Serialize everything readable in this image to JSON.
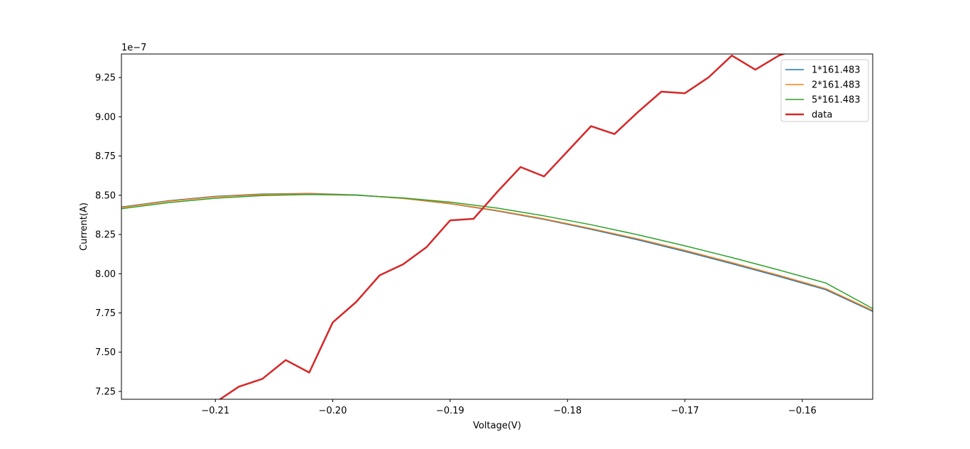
{
  "chart_data": {
    "type": "line",
    "xlabel": "Voltage(V)",
    "ylabel": "Current(A)",
    "y_offset_label": "1e−7",
    "xlim": [
      -0.218,
      -0.154
    ],
    "ylim": [
      7.2,
      9.4
    ],
    "y_scale_factor": 1e-07,
    "x_ticks": [
      -0.21,
      -0.2,
      -0.19,
      -0.18,
      -0.17,
      -0.16
    ],
    "x_tick_labels": [
      "−0.21",
      "−0.20",
      "−0.19",
      "−0.18",
      "−0.17",
      "−0.16"
    ],
    "y_ticks": [
      7.25,
      7.5,
      7.75,
      8.0,
      8.25,
      8.5,
      8.75,
      9.0,
      9.25
    ],
    "y_tick_labels": [
      "7.25",
      "7.50",
      "7.75",
      "8.00",
      "8.25",
      "8.50",
      "8.75",
      "9.00",
      "9.25"
    ],
    "grid": false,
    "legend_position": "upper right",
    "series": [
      {
        "name": "1*161.483",
        "color": "#1f77b4",
        "width": 1.5,
        "x": [
          -0.218,
          -0.214,
          -0.21,
          -0.206,
          -0.202,
          -0.198,
          -0.194,
          -0.19,
          -0.186,
          -0.182,
          -0.178,
          -0.174,
          -0.17,
          -0.166,
          -0.162,
          -0.158,
          -0.154
        ],
        "y": [
          8.425,
          8.465,
          8.493,
          8.508,
          8.512,
          8.502,
          8.48,
          8.446,
          8.4,
          8.346,
          8.283,
          8.216,
          8.142,
          8.064,
          7.983,
          7.898,
          7.76
        ]
      },
      {
        "name": "2*161.483",
        "color": "#ff7f0e",
        "width": 1.5,
        "x": [
          -0.218,
          -0.214,
          -0.21,
          -0.206,
          -0.202,
          -0.198,
          -0.194,
          -0.19,
          -0.186,
          -0.182,
          -0.178,
          -0.174,
          -0.17,
          -0.166,
          -0.162,
          -0.158,
          -0.154
        ],
        "y": [
          8.422,
          8.462,
          8.49,
          8.505,
          8.51,
          8.501,
          8.48,
          8.448,
          8.403,
          8.35,
          8.288,
          8.222,
          8.149,
          8.071,
          7.99,
          7.905,
          7.766
        ]
      },
      {
        "name": "5*161.483",
        "color": "#2ca02c",
        "width": 1.5,
        "x": [
          -0.218,
          -0.214,
          -0.21,
          -0.206,
          -0.202,
          -0.198,
          -0.194,
          -0.19,
          -0.186,
          -0.182,
          -0.178,
          -0.174,
          -0.17,
          -0.166,
          -0.162,
          -0.158,
          -0.154
        ],
        "y": [
          8.414,
          8.453,
          8.481,
          8.498,
          8.505,
          8.5,
          8.483,
          8.456,
          8.418,
          8.369,
          8.312,
          8.248,
          8.178,
          8.103,
          8.024,
          7.941,
          7.778
        ]
      },
      {
        "name": "data",
        "color": "#d62728",
        "width": 2.5,
        "x": [
          -0.212,
          -0.21,
          -0.208,
          -0.206,
          -0.204,
          -0.202,
          -0.2,
          -0.198,
          -0.196,
          -0.194,
          -0.192,
          -0.19,
          -0.188,
          -0.186,
          -0.184,
          -0.182,
          -0.18,
          -0.178,
          -0.176,
          -0.174,
          -0.172,
          -0.17,
          -0.168,
          -0.166,
          -0.164,
          -0.162,
          -0.16
        ],
        "y": [
          7.1,
          7.18,
          7.28,
          7.33,
          7.45,
          7.37,
          7.69,
          7.82,
          7.99,
          8.06,
          8.17,
          8.34,
          8.35,
          8.52,
          8.68,
          8.62,
          8.78,
          8.94,
          8.89,
          9.03,
          9.16,
          9.15,
          9.25,
          9.39,
          9.3,
          9.39,
          9.44
        ]
      }
    ]
  }
}
